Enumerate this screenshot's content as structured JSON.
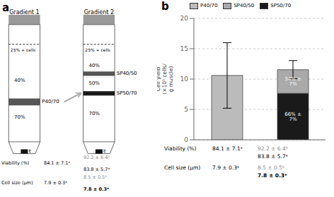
{
  "chart_data": {
    "type": "bar",
    "title": "b",
    "stacked": true,
    "grid": true,
    "tick_labels": "y",
    "categories": [
      null,
      null
    ],
    "ylabel": "Cell yield\n(×10⁵ cells/\ng muscle)",
    "ylim": [
      0,
      20
    ],
    "yticks": [
      0,
      5,
      10,
      15,
      20
    ],
    "series": [
      {
        "name": "P40/70",
        "color": "#bbbbbb",
        "values": [
          10.6,
          null
        ],
        "error": [
          5.4,
          null
        ]
      },
      {
        "name": "SP40/50",
        "color": "#aaaaaa",
        "values": [
          null,
          3.9
        ],
        "error": [
          null,
          1.5
        ],
        "annotations": [
          null,
          "34% ± 7%"
        ]
      },
      {
        "name": "SP50/70",
        "color": "#1a1a1a",
        "values": [
          null,
          7.65
        ],
        "annotations": [
          null,
          "66% ± 7%"
        ]
      }
    ],
    "table": [
      {
        "label": "Viability (%)",
        "cells": [
          [
            "84.1 ± 7.1ᵃ"
          ],
          [
            "92.2 ± 6.4ᵇ",
            "83.8 ± 5.7ᵃ"
          ]
        ]
      },
      {
        "label": "Cell size (µm)",
        "cells": [
          [
            "7.9 ± 0.3ᵃ"
          ],
          [
            "8.5 ± 0.5ᵇ",
            "7.8 ± 0.3ᵃ"
          ]
        ]
      }
    ],
    "diagram": {
      "title": "a",
      "cap_color": "#999999",
      "edge_color": "#444444",
      "tubes": [
        {
          "label": "Gradient 1",
          "layers": [
            "25% + cells",
            "40%",
            "70%"
          ],
          "bands": [
            {
              "name": "P40/70",
              "color": "#555555"
            }
          ],
          "pellet": "E"
        },
        {
          "label": "Gradient 2",
          "layers": [
            "25% + cells",
            "40%",
            "50%",
            "70%"
          ],
          "bands": [
            {
              "name": "SP40/50",
              "color": "#555555"
            },
            {
              "name": "SP50/70",
              "color": "#1a1a1a"
            }
          ],
          "pellet": "E"
        }
      ]
    }
  }
}
